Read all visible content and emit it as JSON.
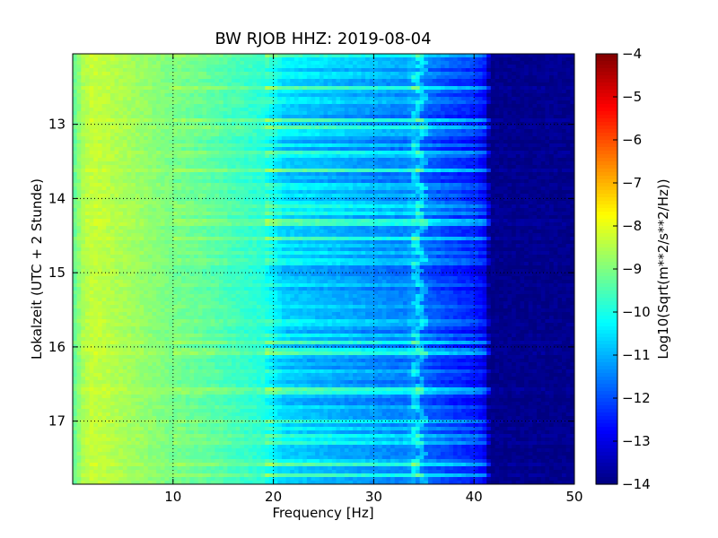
{
  "chart_data": {
    "type": "heatmap",
    "title": "BW RJOB HHZ: 2019-08-04",
    "xlabel": "Frequency [Hz]",
    "ylabel": "Lokalzeit (UTC + 2 Stunde)",
    "colorbar_label": "Log10(Sqrt(m**2/s**2/Hz))",
    "xlim": [
      0,
      50
    ],
    "ylim": [
      17.85,
      12.05
    ],
    "y_inverted": true,
    "x_ticks": [
      10,
      20,
      30,
      40,
      50
    ],
    "y_ticks": [
      13,
      14,
      15,
      16,
      17
    ],
    "colorbar_range": [
      -14,
      -4
    ],
    "colorbar_ticks": [
      -4,
      -5,
      -6,
      -7,
      -8,
      -9,
      -10,
      -11,
      -12,
      -13,
      -14
    ],
    "colormap": "jet",
    "grid": true,
    "spectrum_profile": {
      "frequency_hz": [
        0,
        1,
        2,
        5,
        8,
        10,
        13,
        16,
        19,
        20,
        21,
        24,
        27,
        30,
        33,
        34,
        35,
        37,
        40,
        41,
        41.5,
        50
      ],
      "log_psd": [
        -9.4,
        -8.6,
        -8.3,
        -8.6,
        -8.9,
        -9.1,
        -9.3,
        -9.6,
        -9.9,
        -10.3,
        -10.7,
        -10.9,
        -11.1,
        -11.3,
        -11.5,
        -11.2,
        -11.8,
        -12.1,
        -12.5,
        -12.8,
        -13.9,
        -13.9
      ]
    },
    "spectral_peak_hz": 34.5
  }
}
